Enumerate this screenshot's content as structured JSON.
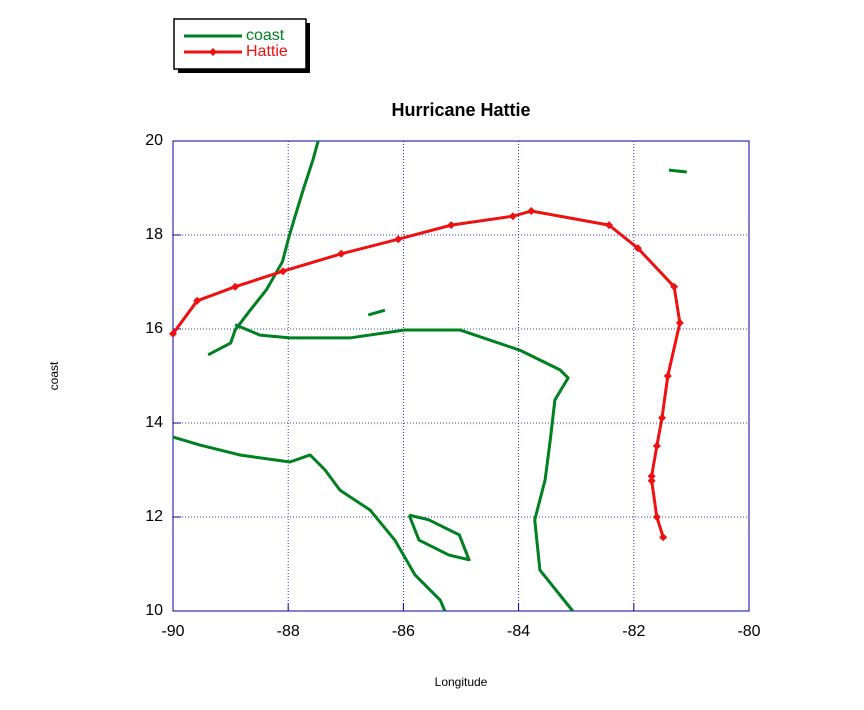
{
  "chart_data": {
    "type": "line",
    "title": "Hurricane Hattie",
    "x_label": "Longitude",
    "y_label": "coast",
    "xlim": [
      -90,
      -80
    ],
    "xticks": [
      -90,
      -88,
      -86,
      -84,
      -82,
      -80
    ],
    "ylim": [
      10,
      20
    ],
    "yticks": [
      10,
      12,
      14,
      16,
      18,
      20
    ],
    "grid": true,
    "legend": "top-left",
    "series": [
      {
        "name": "coast",
        "color": "#008020",
        "markers": false,
        "x": [
          -87.48,
          -87.57,
          -87.74,
          -87.9,
          -88.0,
          -88.1,
          -88.38,
          -88.66,
          -88.92,
          -89.0,
          -89.39,
          null,
          -88.92,
          -88.49,
          -87.97,
          -86.93,
          -85.97,
          -85.02,
          -83.98,
          -83.28,
          -83.14,
          -83.37,
          -83.45,
          -83.54,
          -83.72,
          -83.63,
          -83.06,
          null,
          -90,
          -89.53,
          -88.84,
          -87.97,
          -87.62,
          -87.36,
          -87.1,
          -86.58,
          -86.15,
          -85.8,
          -85.36,
          -85.28,
          null,
          -85.9,
          -85.56,
          -85.03,
          -84.86,
          -85.21,
          -85.73,
          -85.9,
          null,
          -81.39,
          -81.08,
          null,
          -86.61,
          -86.32
        ],
        "values": [
          20,
          19.6,
          18.96,
          18.32,
          17.9,
          17.43,
          16.83,
          16.4,
          15.98,
          15.7,
          15.45,
          null,
          16.09,
          15.87,
          15.81,
          15.81,
          15.98,
          15.98,
          15.55,
          15.13,
          14.96,
          14.49,
          13.64,
          12.79,
          11.94,
          10.87,
          10.0,
          null,
          13.7,
          13.53,
          13.32,
          13.17,
          13.32,
          13.0,
          12.57,
          12.15,
          11.51,
          10.77,
          10.23,
          10.0,
          null,
          12.04,
          11.94,
          11.62,
          11.09,
          11.19,
          11.51,
          12.04,
          null,
          19.38,
          19.34,
          null,
          16.3,
          16.4
        ]
      },
      {
        "name": "Hattie",
        "color": "#ee1111",
        "markers": true,
        "x": [
          -90,
          -89.58,
          -88.92,
          -88.09,
          -87.08,
          -86.09,
          -85.17,
          -84.1,
          -83.78,
          -82.43,
          -81.93,
          -81.3,
          -81.2,
          -81.41,
          -81.51,
          -81.6,
          -81.69,
          -81.69,
          -81.6,
          -81.49
        ],
        "values": [
          15.9,
          16.6,
          16.9,
          17.23,
          17.6,
          17.91,
          18.21,
          18.4,
          18.51,
          18.21,
          17.72,
          16.9,
          16.13,
          15.0,
          14.11,
          13.51,
          12.87,
          12.77,
          12.0,
          11.57
        ]
      }
    ]
  }
}
